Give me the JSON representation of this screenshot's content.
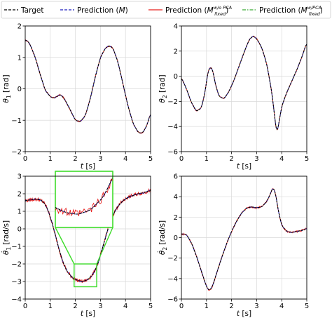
{
  "legend": {
    "placement": "top",
    "entries": [
      {
        "label": "Target",
        "color": "#000000",
        "dash": "dashed"
      },
      {
        "label": "Prediction (",
        "math": "M",
        "suffix": ")",
        "color": "#1f1fbf",
        "dash": "dashed"
      },
      {
        "label": "Prediction (",
        "math": "M",
        "sup": "w/o PCA",
        "sub": "fixed",
        "suffix": ")",
        "color": "#e8201e",
        "dash": "solid"
      },
      {
        "label": "Prediction (",
        "math": "M",
        "sup": "w/PCA",
        "sub": "fixed",
        "suffix": ")",
        "color": "#3aaa35",
        "dash": "dashdot"
      }
    ]
  },
  "colors": {
    "target": "#000000",
    "pred_m": "#1f1fbf",
    "pred_wo_pca": "#e8201e",
    "pred_w_pca": "#3aaa35",
    "zoom_box": "#3ddc2a",
    "grid": "#d9d9d9"
  },
  "chart_data": [
    {
      "type": "line",
      "id": "tl",
      "xlabel_sym": "t",
      "xlabel_unit": " [s]",
      "ylabel_sym": "θ",
      "ylabel_sub": "1",
      "ylabel_unit": " [rad]",
      "xlim": [
        0,
        5
      ],
      "ylim": [
        -2,
        2
      ],
      "xticks": [
        0,
        1,
        2,
        3,
        4,
        5
      ],
      "yticks": [
        -2,
        -1,
        0,
        1,
        2
      ],
      "grid": true,
      "noise_amp": 0.02,
      "target": {
        "x": [
          0,
          0.1,
          0.2,
          0.4,
          0.6,
          0.8,
          1.0,
          1.15,
          1.25,
          1.4,
          1.55,
          1.75,
          2.0,
          2.2,
          2.4,
          2.6,
          2.8,
          3.0,
          3.2,
          3.35,
          3.5,
          3.7,
          3.9,
          4.1,
          4.3,
          4.5,
          4.6,
          4.7,
          4.8,
          4.9,
          5.0
        ],
        "y": [
          1.55,
          1.52,
          1.4,
          1.0,
          0.45,
          -0.05,
          -0.25,
          -0.3,
          -0.25,
          -0.18,
          -0.3,
          -0.6,
          -1.0,
          -1.05,
          -0.85,
          -0.3,
          0.4,
          1.0,
          1.3,
          1.37,
          1.3,
          0.85,
          0.15,
          -0.55,
          -1.1,
          -1.38,
          -1.42,
          -1.38,
          -1.25,
          -1.05,
          -0.75
        ]
      }
    },
    {
      "type": "line",
      "id": "tr",
      "xlabel_sym": "t",
      "xlabel_unit": " [s]",
      "ylabel_sym": "θ",
      "ylabel_sub": "2",
      "ylabel_unit": " [rad]",
      "xlim": [
        0,
        5
      ],
      "ylim": [
        -6,
        4
      ],
      "xticks": [
        0,
        1,
        2,
        3,
        4,
        5
      ],
      "yticks": [
        -6,
        -4,
        -2,
        0,
        2,
        4
      ],
      "grid": true,
      "noise_amp": 0.05,
      "target": {
        "x": [
          0,
          0.2,
          0.4,
          0.6,
          0.8,
          0.95,
          1.05,
          1.15,
          1.25,
          1.35,
          1.5,
          1.7,
          1.9,
          2.1,
          2.3,
          2.5,
          2.7,
          2.85,
          3.0,
          3.2,
          3.4,
          3.6,
          3.72,
          3.8,
          3.9,
          4.0,
          4.2,
          4.4,
          4.6,
          4.8,
          5.0
        ],
        "y": [
          -0.1,
          -1.0,
          -2.1,
          -2.8,
          -2.5,
          -1.2,
          0.3,
          0.75,
          0.5,
          -0.6,
          -1.6,
          -1.8,
          -1.2,
          -0.3,
          0.8,
          1.9,
          2.9,
          3.2,
          3.0,
          2.3,
          1.0,
          -1.2,
          -3.2,
          -4.6,
          -3.6,
          -2.4,
          -1.3,
          -0.4,
          0.5,
          1.5,
          2.7
        ]
      }
    },
    {
      "type": "line",
      "id": "bl",
      "xlabel_sym": "t",
      "xlabel_unit": " [s]",
      "ylabel_sym": "θ̇",
      "ylabel_sub": "1",
      "ylabel_unit": " [rad/s]",
      "xlim": [
        0,
        5
      ],
      "ylim": [
        -4,
        3
      ],
      "xticks": [
        0,
        1,
        2,
        3,
        4,
        5
      ],
      "yticks": [
        -4,
        -3,
        -2,
        -1,
        0,
        1,
        2,
        3
      ],
      "grid": true,
      "noise_amp": 0.1,
      "zoom": {
        "x": [
          1.95,
          2.85
        ],
        "y": [
          -3.3,
          -2.0
        ]
      },
      "target": {
        "x": [
          0,
          0.2,
          0.4,
          0.6,
          0.75,
          0.9,
          1.1,
          1.3,
          1.5,
          1.7,
          1.9,
          2.1,
          2.3,
          2.5,
          2.7,
          2.9,
          3.1,
          3.3,
          3.5,
          3.7,
          3.9,
          4.1,
          4.3,
          4.5,
          4.7,
          5.0
        ],
        "y": [
          1.6,
          1.65,
          1.7,
          1.65,
          1.5,
          1.1,
          0.2,
          -0.9,
          -1.9,
          -2.5,
          -2.8,
          -2.95,
          -3.0,
          -2.9,
          -2.6,
          -2.0,
          -1.0,
          0.0,
          0.8,
          1.3,
          1.6,
          1.8,
          1.9,
          2.0,
          2.05,
          2.2
        ]
      }
    },
    {
      "type": "line",
      "id": "br",
      "xlabel_sym": "t",
      "xlabel_unit": " [s]",
      "ylabel_sym": "θ̇",
      "ylabel_sub": "2",
      "ylabel_unit": " [rad/s]",
      "xlim": [
        0,
        5
      ],
      "ylim": [
        -6,
        6
      ],
      "xticks": [
        0,
        1,
        2,
        3,
        4,
        5
      ],
      "yticks": [
        -6,
        -4,
        -2,
        0,
        2,
        4,
        6
      ],
      "grid": true,
      "noise_amp": 0.08,
      "target": {
        "x": [
          0,
          0.1,
          0.2,
          0.4,
          0.6,
          0.8,
          1.0,
          1.12,
          1.25,
          1.4,
          1.6,
          1.8,
          2.0,
          2.2,
          2.4,
          2.6,
          2.8,
          3.0,
          3.2,
          3.4,
          3.55,
          3.65,
          3.75,
          3.85,
          4.0,
          4.2,
          4.4,
          4.6,
          4.8,
          5.0
        ],
        "y": [
          0.35,
          0.35,
          0.3,
          -0.5,
          -1.8,
          -3.3,
          -4.8,
          -5.2,
          -4.7,
          -3.5,
          -2.0,
          -0.6,
          0.6,
          1.6,
          2.4,
          2.9,
          3.0,
          2.9,
          3.0,
          3.5,
          4.3,
          4.9,
          4.4,
          2.8,
          1.2,
          0.6,
          0.5,
          0.6,
          0.7,
          0.9
        ]
      }
    }
  ]
}
